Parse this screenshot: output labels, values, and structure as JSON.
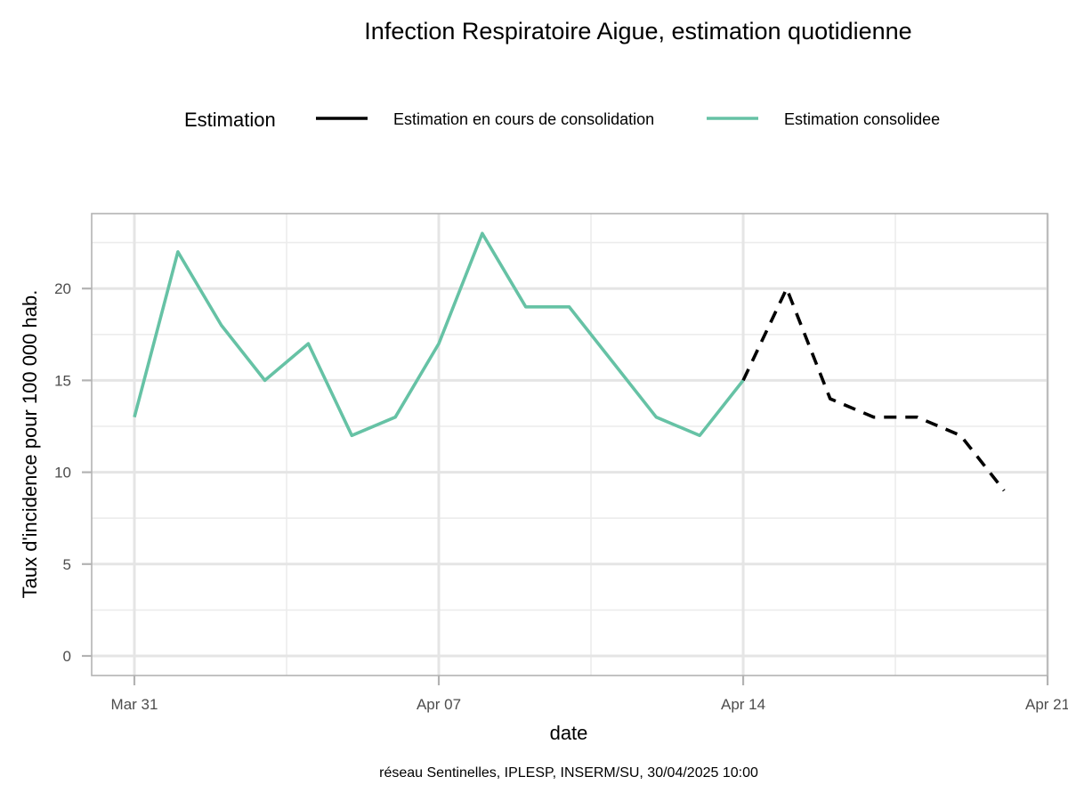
{
  "chart_data": {
    "type": "line",
    "title": "Infection Respiratoire Aigue, estimation quotidienne",
    "xlabel": "date",
    "ylabel": "Taux d'incidence pour 100 000 hab.",
    "caption": "réseau Sentinelles, IPLESP, INSERM/SU, 30/04/2025 10:00",
    "legend": {
      "title": "Estimation",
      "position": "top"
    },
    "x_ticks": [
      "Mar 31",
      "Apr 07",
      "Apr 14",
      "Apr 21"
    ],
    "y_ticks": [
      "0",
      "5",
      "10",
      "15",
      "20"
    ],
    "ylim": [
      0,
      23
    ],
    "grid": true,
    "series": [
      {
        "name": "Estimation consolidee",
        "color": "#66c2a5",
        "style": "solid",
        "x": [
          "2025-03-31",
          "2025-04-01",
          "2025-04-02",
          "2025-04-03",
          "2025-04-04",
          "2025-04-05",
          "2025-04-06",
          "2025-04-07",
          "2025-04-08",
          "2025-04-09",
          "2025-04-10",
          "2025-04-11",
          "2025-04-12",
          "2025-04-13",
          "2025-04-14"
        ],
        "values": [
          13,
          22,
          18,
          15,
          17,
          12,
          13,
          17,
          23,
          19,
          19,
          16,
          13,
          12,
          15
        ]
      },
      {
        "name": "Estimation en cours de consolidation",
        "color": "#000000",
        "style": "dashed",
        "x": [
          "2025-04-14",
          "2025-04-15",
          "2025-04-16",
          "2025-04-17",
          "2025-04-18",
          "2025-04-19",
          "2025-04-20"
        ],
        "values": [
          15,
          20,
          14,
          13,
          13,
          12,
          9
        ]
      }
    ]
  }
}
